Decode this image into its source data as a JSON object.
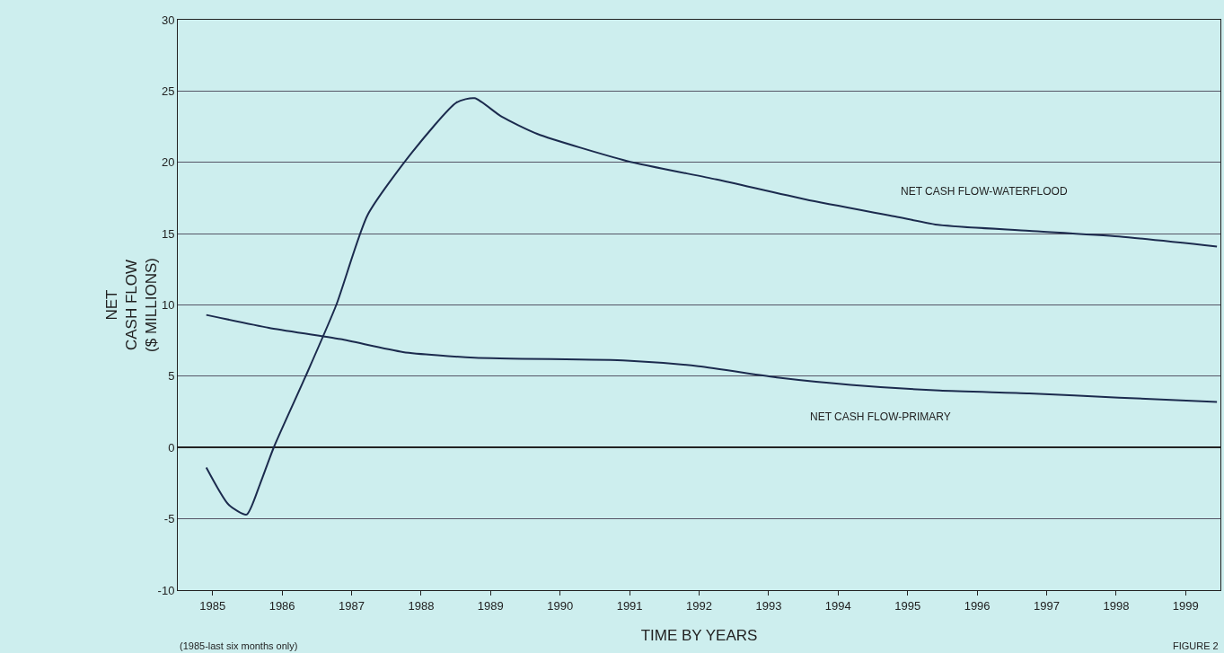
{
  "chart_data": {
    "type": "line",
    "xlabel": "TIME BY YEARS",
    "ylabel": "NET\nCASH FLOW\n($ MILLIONS)",
    "xlim": [
      1984.5,
      1999.5
    ],
    "xticks": [
      1985,
      1986,
      1987,
      1988,
      1989,
      1990,
      1991,
      1992,
      1993,
      1994,
      1995,
      1996,
      1997,
      1998,
      1999
    ],
    "ylim": [
      -10,
      30
    ],
    "yticks": [
      -10,
      -5,
      0,
      5,
      10,
      15,
      20,
      25,
      30
    ],
    "grid": "y",
    "marker": "none",
    "line_style": "solid",
    "legend": false,
    "series": [
      {
        "name": "NET CASH FLOW-WATERFLOOD",
        "color": "#1c2b4e",
        "x": [
          1984.91,
          1985.23,
          1985.49,
          1985.68,
          1985.88,
          1986.33,
          1986.78,
          1987.23,
          1987.87,
          1988.51,
          1988.77,
          1989.16,
          1989.67,
          1990.96,
          1992.25,
          1993.53,
          1994.82,
          1995.46,
          1996.75,
          1998.04,
          1999.45
        ],
        "values": [
          -1.4,
          -4,
          -4.7,
          -2.6,
          0,
          4.9,
          10,
          16.3,
          20.7,
          24.2,
          24.5,
          23.2,
          22,
          20.1,
          18.8,
          17.4,
          16.2,
          15.6,
          15.2,
          14.8,
          14.1
        ]
      },
      {
        "name": "NET CASH FLOW-PRIMARY",
        "color": "#1c2b4e",
        "x": [
          1984.91,
          1985.81,
          1986.84,
          1987.74,
          1988.77,
          1990.96,
          1991.99,
          1993.15,
          1994.18,
          1995.46,
          1996.75,
          1998.04,
          1999.45
        ],
        "values": [
          9.3,
          8.4,
          7.6,
          6.7,
          6.3,
          6.1,
          5.7,
          4.9,
          4.4,
          4,
          3.8,
          3.5,
          3.2
        ]
      }
    ],
    "annotations": [
      "(1985-last six months only)",
      "FIGURE 2"
    ]
  }
}
